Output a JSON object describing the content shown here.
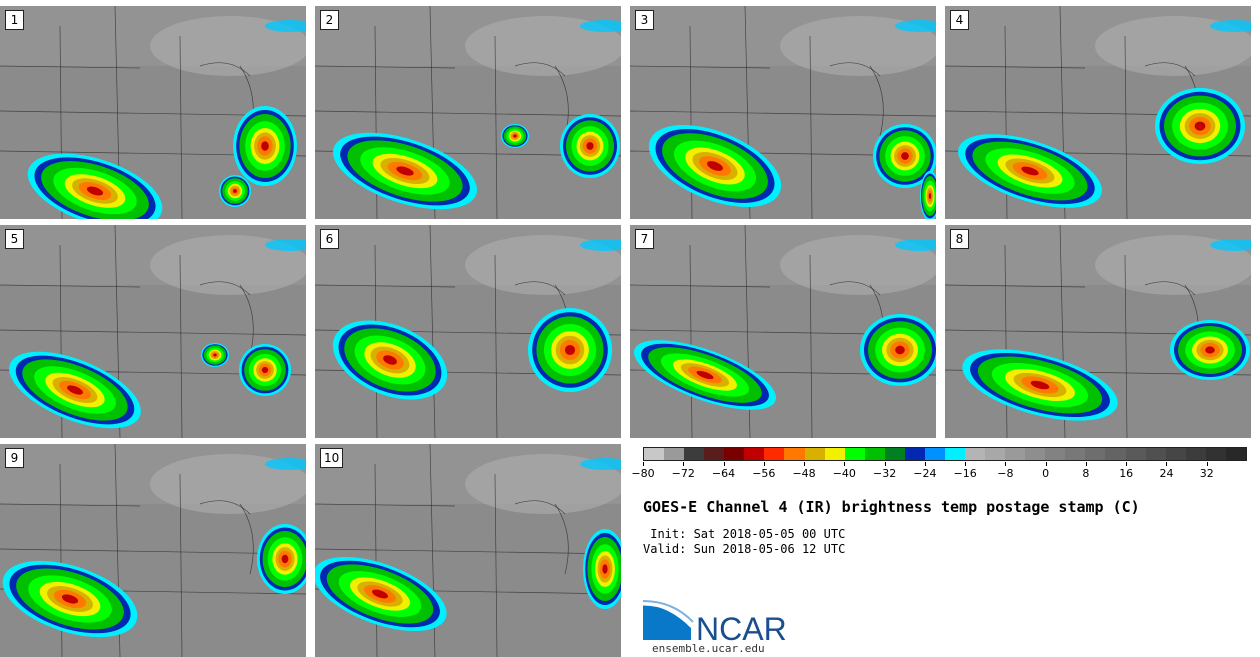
{
  "panels": [
    {
      "label": "1"
    },
    {
      "label": "2"
    },
    {
      "label": "3"
    },
    {
      "label": "4"
    },
    {
      "label": "5"
    },
    {
      "label": "6"
    },
    {
      "label": "7"
    },
    {
      "label": "8"
    },
    {
      "label": "9"
    },
    {
      "label": "10"
    }
  ],
  "colorbar": {
    "colors": [
      "#c8c8c8",
      "#9a9a9a",
      "#3c3c3c",
      "#5a1c1c",
      "#7a0000",
      "#c00000",
      "#ff2a00",
      "#ff7800",
      "#d8b000",
      "#f0f000",
      "#00ff00",
      "#00c000",
      "#008020",
      "#0028b0",
      "#0090ff",
      "#00f0ff",
      "#b4b4b4",
      "#a8a8a8",
      "#9a9a9a",
      "#8e8e8e",
      "#828282",
      "#787878",
      "#6e6e6e",
      "#646464",
      "#5a5a5a",
      "#505050",
      "#464646",
      "#3c3c3c",
      "#323232",
      "#282828"
    ],
    "ticks": [
      "−80",
      "−72",
      "−64",
      "−56",
      "−48",
      "−40",
      "−32",
      "−24",
      "−16",
      "−8",
      "0",
      "8",
      "16",
      "24",
      "32"
    ]
  },
  "title": "GOES-E Channel 4 (IR) brightness temp postage stamp (C)",
  "init": " Init: Sat 2018-05-05 00 UTC",
  "valid": "Valid: Sun 2018-05-06 12 UTC",
  "logo": {
    "text": "NCAR",
    "url": "ensemble.ucar.edu",
    "color": "#1a4f8f"
  }
}
